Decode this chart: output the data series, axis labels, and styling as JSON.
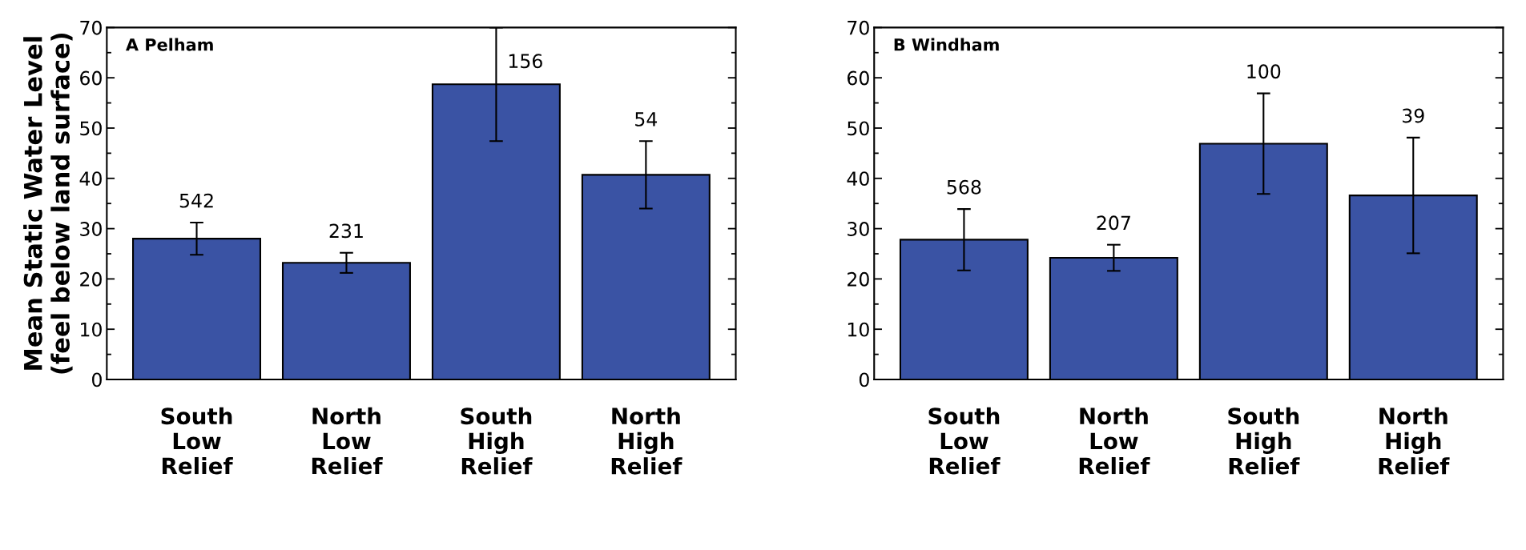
{
  "chart_data": [
    {
      "type": "bar",
      "title": "A Pelham",
      "ylabel": "Mean Static Water Level\n(feel below land surface)",
      "categories": [
        "South\nLow\nRelief",
        "North\nLow\nRelief",
        "South\nHigh\nRelief",
        "North\nHigh\nRelief"
      ],
      "values": [
        28.0,
        23.2,
        58.7,
        40.7
      ],
      "errors": [
        3.2,
        2.0,
        11.3,
        6.7
      ],
      "annotations": [
        "542",
        "231",
        "156",
        "54"
      ],
      "color": "#3a53a4",
      "ylim": [
        0,
        70
      ],
      "yticks": [
        0,
        10,
        20,
        30,
        40,
        50,
        60,
        70
      ],
      "grid": false,
      "legend": false
    },
    {
      "type": "bar",
      "title": "B Windham",
      "categories": [
        "South\nLow\nRelief",
        "North\nLow\nRelief",
        "South\nHigh\nRelief",
        "North\nHigh\nRelief"
      ],
      "values": [
        27.8,
        24.2,
        46.9,
        36.6
      ],
      "errors": [
        6.1,
        2.6,
        10.0,
        11.5
      ],
      "annotations": [
        "568",
        "207",
        "100",
        "39"
      ],
      "color": "#3a53a4",
      "ylim": [
        0,
        70
      ],
      "yticks": [
        0,
        10,
        20,
        30,
        40,
        50,
        60,
        70
      ],
      "grid": false,
      "legend": false
    }
  ]
}
